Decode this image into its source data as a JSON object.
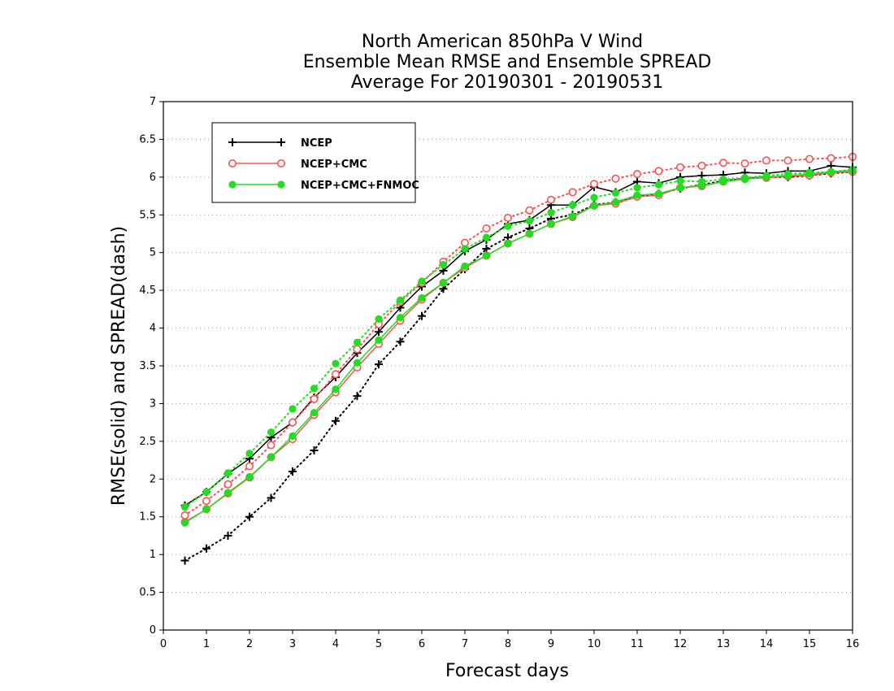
{
  "chart_data": {
    "type": "line",
    "title_lines": [
      "North American 850hPa V Wind",
      "Ensemble Mean RMSE and Ensemble SPREAD",
      "Average For 20190301 - 20190531"
    ],
    "xlabel": "Forecast days",
    "ylabel": "RMSE(solid) and SPREAD(dash)",
    "xlim": [
      0,
      16
    ],
    "ylim": [
      0,
      7
    ],
    "x_ticks": [
      0,
      1,
      2,
      3,
      4,
      5,
      6,
      7,
      8,
      9,
      10,
      11,
      12,
      13,
      14,
      15,
      16
    ],
    "y_ticks": [
      0,
      0.5,
      1,
      1.5,
      2,
      2.5,
      3,
      3.5,
      4,
      4.5,
      5,
      5.5,
      6,
      6.5,
      7
    ],
    "y_tick_labels": [
      "0",
      "0.5",
      "1",
      "1.5",
      "2",
      "2.5",
      "3",
      "3.5",
      "4",
      "4.5",
      "5",
      "5.5",
      "6",
      "6.5",
      "7"
    ],
    "grid": "horizontal-dotted",
    "legend_placement": "top-left",
    "x": [
      0.5,
      1,
      1.5,
      2,
      2.5,
      3,
      3.5,
      4,
      4.5,
      5,
      5.5,
      6,
      6.5,
      7,
      7.5,
      8,
      8.5,
      9,
      9.5,
      10,
      10.5,
      11,
      11.5,
      12,
      12.5,
      13,
      13.5,
      14,
      14.5,
      15,
      15.5,
      16
    ],
    "series": [
      {
        "name": "NCEP",
        "metric": "RMSE",
        "color": "#000000",
        "marker": "plus",
        "dash": "solid",
        "values": [
          1.65,
          1.83,
          2.07,
          2.27,
          2.55,
          2.75,
          3.08,
          3.35,
          3.67,
          3.95,
          4.27,
          4.55,
          4.76,
          5.02,
          5.17,
          5.38,
          5.43,
          5.63,
          5.63,
          5.87,
          5.8,
          5.94,
          5.92,
          6.0,
          6.02,
          6.03,
          6.06,
          6.05,
          6.08,
          6.08,
          6.15,
          6.13
        ]
      },
      {
        "name": "NCEP",
        "metric": "SPREAD",
        "color": "#000000",
        "marker": "plus",
        "dash": "dotted",
        "values": [
          0.92,
          1.08,
          1.25,
          1.5,
          1.75,
          2.1,
          2.38,
          2.77,
          3.1,
          3.52,
          3.82,
          4.16,
          4.52,
          4.78,
          5.05,
          5.2,
          5.32,
          5.45,
          5.5,
          5.63,
          5.67,
          5.75,
          5.78,
          5.85,
          5.9,
          5.95,
          5.98,
          6.0,
          6.0,
          6.02,
          6.05,
          6.07
        ]
      },
      {
        "name": "NCEP+CMC",
        "metric": "RMSE",
        "color": "#ff5050",
        "marker": "circle-open",
        "dash": "solid",
        "values": [
          1.43,
          1.6,
          1.81,
          2.02,
          2.29,
          2.53,
          2.85,
          3.15,
          3.48,
          3.79,
          4.1,
          4.38,
          4.6,
          4.8,
          4.96,
          5.12,
          5.25,
          5.38,
          5.47,
          5.62,
          5.65,
          5.74,
          5.76,
          5.86,
          5.88,
          5.94,
          5.98,
          5.99,
          6.01,
          6.02,
          6.06,
          6.07
        ]
      },
      {
        "name": "NCEP+CMC",
        "metric": "SPREAD",
        "color": "#ff5050",
        "marker": "circle-open",
        "dash": "dotted",
        "values": [
          1.52,
          1.71,
          1.93,
          2.17,
          2.45,
          2.75,
          3.06,
          3.39,
          3.72,
          4.05,
          4.35,
          4.6,
          4.88,
          5.13,
          5.32,
          5.46,
          5.56,
          5.7,
          5.8,
          5.91,
          5.98,
          6.04,
          6.08,
          6.13,
          6.15,
          6.19,
          6.18,
          6.22,
          6.22,
          6.24,
          6.25,
          6.27
        ]
      },
      {
        "name": "NCEP+CMC+FNMOC",
        "metric": "RMSE",
        "color": "#22dd22",
        "marker": "circle-filled",
        "dash": "solid",
        "values": [
          1.42,
          1.6,
          1.82,
          2.03,
          2.29,
          2.57,
          2.88,
          3.19,
          3.54,
          3.84,
          4.14,
          4.4,
          4.6,
          4.82,
          4.96,
          5.12,
          5.25,
          5.38,
          5.48,
          5.62,
          5.67,
          5.76,
          5.78,
          5.86,
          5.89,
          5.94,
          5.97,
          6.0,
          6.02,
          6.04,
          6.07,
          6.09
        ]
      },
      {
        "name": "NCEP+CMC+FNMOC",
        "metric": "SPREAD",
        "color": "#22dd22",
        "marker": "circle-filled",
        "dash": "dotted",
        "values": [
          1.63,
          1.83,
          2.08,
          2.34,
          2.62,
          2.93,
          3.2,
          3.53,
          3.81,
          4.12,
          4.37,
          4.62,
          4.84,
          5.05,
          5.2,
          5.35,
          5.42,
          5.53,
          5.63,
          5.73,
          5.79,
          5.86,
          5.9,
          5.95,
          5.94,
          5.97,
          5.99,
          6.02,
          6.04,
          6.06,
          6.07,
          6.1
        ]
      }
    ],
    "legend": [
      {
        "label": "NCEP",
        "color": "#000000",
        "marker": "plus"
      },
      {
        "label": "NCEP+CMC",
        "color": "#ff5050",
        "marker": "circle-open"
      },
      {
        "label": "NCEP+CMC+FNMOC",
        "color": "#22dd22",
        "marker": "circle-filled"
      }
    ]
  }
}
